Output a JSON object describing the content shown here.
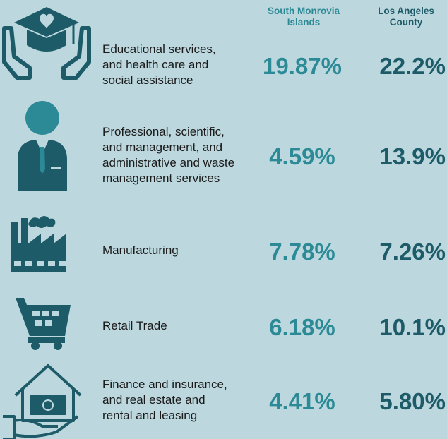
{
  "table": {
    "columns": [
      "South Monrovia Islands",
      "Los Angeles County"
    ],
    "rows": [
      {
        "label": [
          "Educational services,",
          "and health care and",
          "social assistance"
        ],
        "values": [
          "19.87%",
          "22.2%"
        ]
      },
      {
        "label": [
          "Professional, scientific,",
          "and management, and",
          "administrative and waste",
          "management services"
        ],
        "values": [
          "4.59%",
          "13.9%"
        ]
      },
      {
        "label": [
          "Manufacturing"
        ],
        "values": [
          "7.78%",
          "7.26%"
        ]
      },
      {
        "label": [
          "Retail Trade"
        ],
        "values": [
          "6.18%",
          "10.1%"
        ]
      },
      {
        "label": [
          "Finance and insurance,",
          "and real estate and",
          "rental and leasing"
        ],
        "values": [
          "4.41%",
          "5.80%"
        ]
      }
    ]
  }
}
